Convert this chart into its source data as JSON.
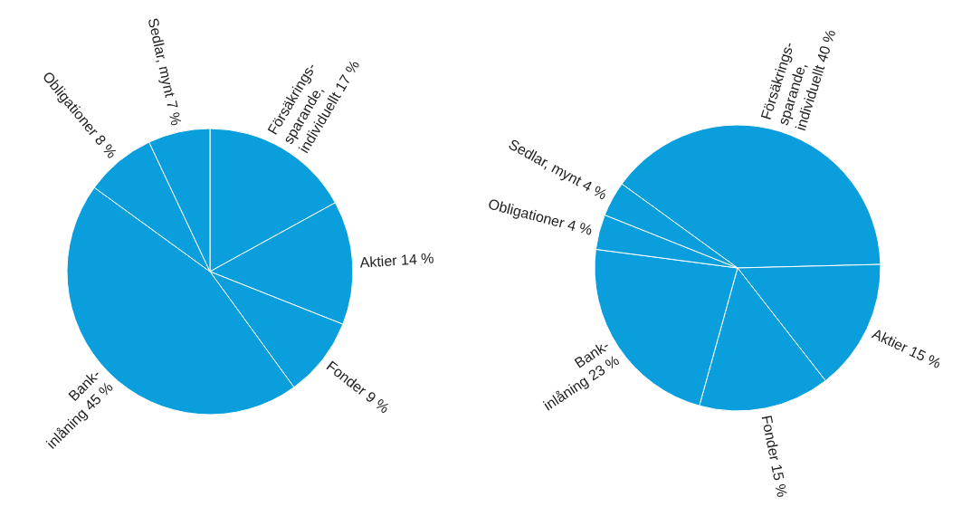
{
  "chart_data": [
    {
      "type": "pie",
      "categories": [
        "Försäkrings-\nsparande,\nindividuellt",
        "Aktier",
        "Fonder",
        "Bank-\ninlåning",
        "Obligationer",
        "Sedlar, mynt"
      ],
      "values": [
        17,
        14,
        9,
        45,
        8,
        7
      ],
      "value_labels": [
        "17 %",
        "14 %",
        "9 %",
        "45 %",
        "8 %",
        "7 %"
      ],
      "colors": [
        "#0a9fdc",
        "#0a9fdc",
        "#0a9fdc",
        "#0a9fdc",
        "#0a9fdc",
        "#0a9fdc"
      ]
    },
    {
      "type": "pie",
      "categories": [
        "Försäkrings-\nsparande,\nindividuellt",
        "Aktier",
        "Fonder",
        "Bank-\ninlåning",
        "Obligationer",
        "Sedlar, mynt"
      ],
      "values": [
        40,
        15,
        15,
        23,
        4,
        4
      ],
      "value_labels": [
        "40 %",
        "15 %",
        "15 %",
        "23 %",
        "4 %",
        "4 %"
      ],
      "colors": [
        "#0a9fdc",
        "#0a9fdc",
        "#0a9fdc",
        "#0a9fdc",
        "#0a9fdc",
        "#0a9fdc"
      ]
    }
  ]
}
